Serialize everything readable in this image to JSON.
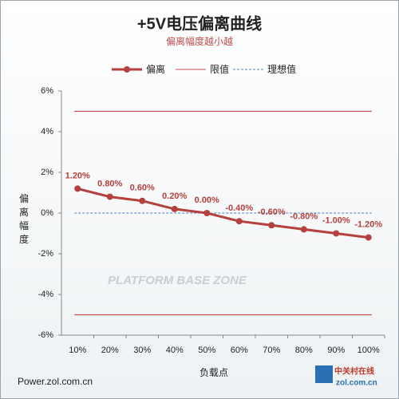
{
  "chart_data": {
    "type": "line",
    "title": "+5V电压偏离曲线",
    "subtitle": "偏离幅度越小越",
    "y_label": "偏离幅度",
    "x_label": "负载点",
    "watermark": "PLATFORM BASE ZONE",
    "footer": "Power.zol.com.cn",
    "logo": {
      "name": "中关村在线",
      "site": "zol.com.cn"
    },
    "categories": [
      "10%",
      "20%",
      "30%",
      "40%",
      "50%",
      "60%",
      "70%",
      "80%",
      "90%",
      "100%"
    ],
    "series": [
      {
        "name": "偏离",
        "color": "#b5403d",
        "values": [
          1.2,
          0.8,
          0.6,
          0.2,
          0,
          -0.4,
          -0.6,
          -0.8,
          -1,
          -1.2
        ],
        "value_labels": [
          "1.20%",
          "0.80%",
          "0.60%",
          "0.20%",
          "0.00%",
          "-0.40%",
          "-0.60%",
          "-0.80%",
          "-1.00%",
          "-1.20%"
        ]
      }
    ],
    "reference_lines": [
      {
        "name": "限值",
        "color": "#c0504d",
        "values": [
          5,
          -5
        ]
      },
      {
        "name": "理想值",
        "color": "#4f81bd",
        "values": [
          0
        ],
        "dashed": true
      }
    ],
    "ylim": [
      -6,
      6
    ],
    "yticks": [
      {
        "value": 6,
        "label": "6%"
      },
      {
        "value": 4,
        "label": "4%"
      },
      {
        "value": 2,
        "label": "2%"
      },
      {
        "value": 0,
        "label": "0%"
      },
      {
        "value": -2,
        "label": "-2%"
      },
      {
        "value": -4,
        "label": "-4%"
      },
      {
        "value": -6,
        "label": "-6%"
      }
    ],
    "legend": "top"
  }
}
